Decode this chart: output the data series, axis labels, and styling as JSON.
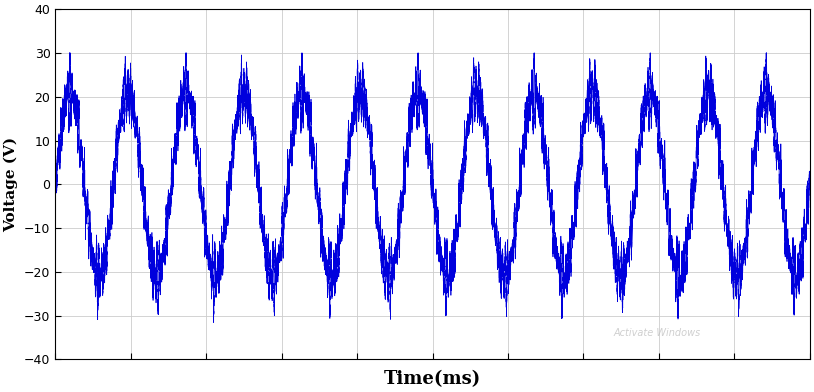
{
  "title": "",
  "xlabel": "Time(ms)",
  "ylabel": "Voltage (V)",
  "ylim": [
    -40,
    40
  ],
  "xlim": [
    0,
    1
  ],
  "yticks": [
    -40,
    -30,
    -20,
    -10,
    0,
    10,
    20,
    30,
    40
  ],
  "line_color": "#0000DD",
  "line_width": 0.5,
  "background_color": "#ffffff",
  "grid_color": "#cccccc",
  "watermark": "Activate Windows",
  "num_cycles": 13,
  "fundamental_freq": 13,
  "hf_freq_mult": 25,
  "square_amplitude": 25,
  "sine_amplitude": 25,
  "noise_amplitude": 0.8,
  "xlabel_fontsize": 13,
  "ylabel_fontsize": 11
}
